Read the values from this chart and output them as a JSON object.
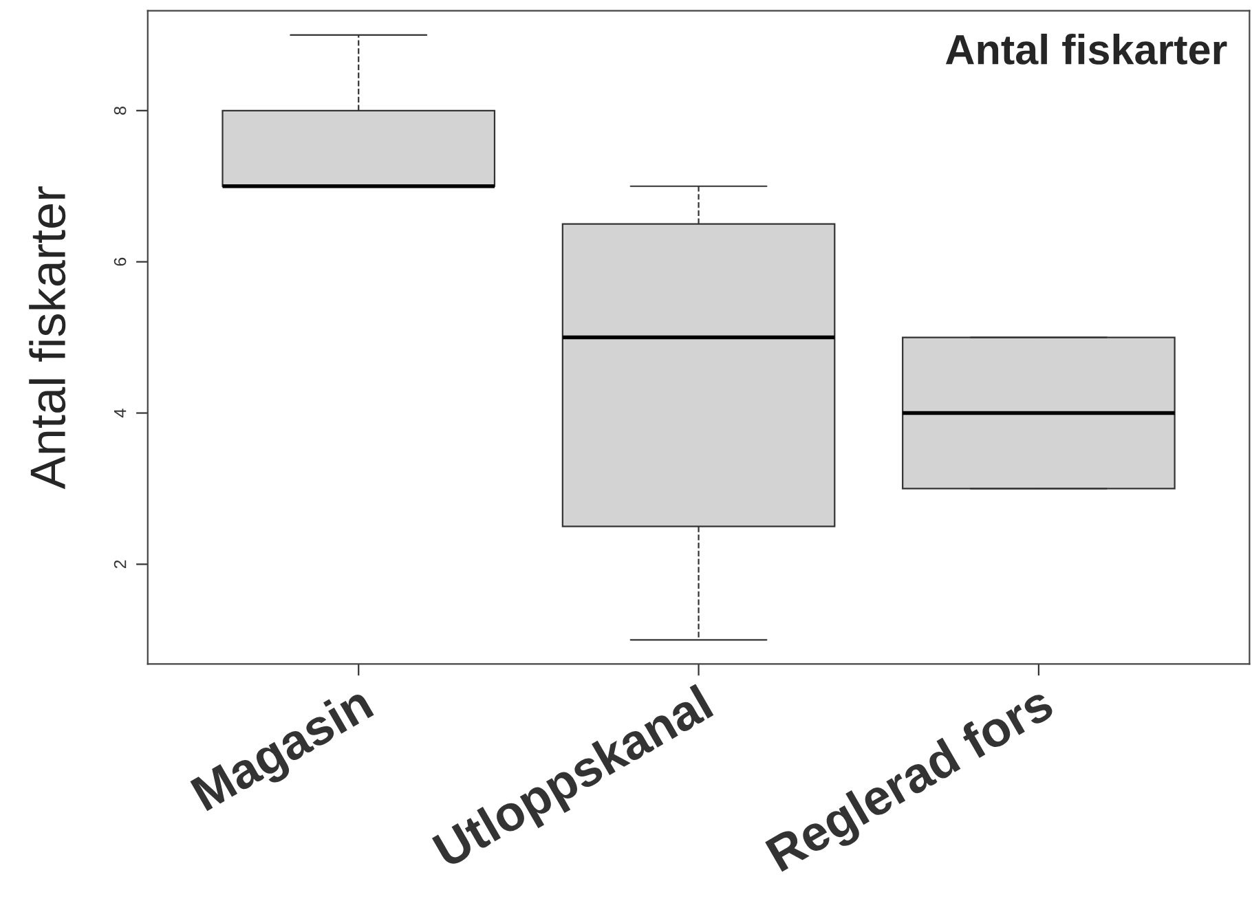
{
  "chart_data": {
    "type": "box",
    "title": "Antal fiskarter",
    "ylabel": "Antal fiskarter",
    "categories": [
      "Magasin",
      "Utloppskanal",
      "Reglerad fors"
    ],
    "series": [
      {
        "color": "#d3d3d3",
        "boxes": [
          {
            "low": 7,
            "q1": 7,
            "median": 7,
            "q3": 8,
            "high": 9
          },
          {
            "low": 1,
            "q1": 2.5,
            "median": 5,
            "q3": 6.5,
            "high": 7
          },
          {
            "low": 3,
            "q1": 3,
            "median": 4,
            "q3": 5,
            "high": 5
          }
        ]
      }
    ],
    "ylim": [
      0.68,
      9.32
    ],
    "yticks": [
      2,
      4,
      6,
      8
    ],
    "grid": false,
    "legend": false
  }
}
